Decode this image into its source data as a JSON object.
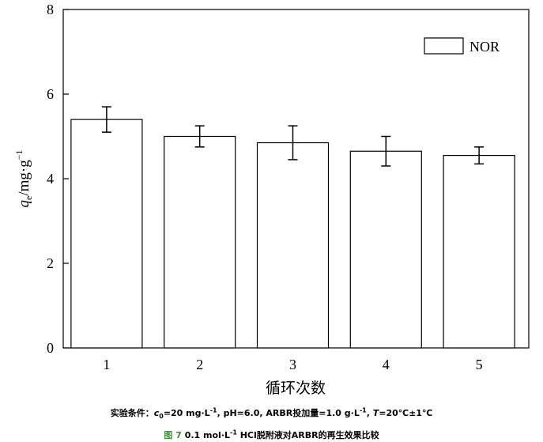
{
  "chart_data": {
    "type": "bar",
    "categories": [
      "1",
      "2",
      "3",
      "4",
      "5"
    ],
    "series": [
      {
        "name": "NOR",
        "values": [
          5.4,
          5.0,
          4.85,
          4.65,
          4.55
        ],
        "errors": [
          0.3,
          0.25,
          0.4,
          0.35,
          0.2
        ]
      }
    ],
    "ylim": [
      0,
      8
    ],
    "yticks": [
      "0",
      "2",
      "4",
      "6",
      "8"
    ],
    "xlabel": "循环次数",
    "ylabel": "qe/mg·g⁻¹",
    "legend_position": "top-right",
    "colors": {
      "bar_fill": "#ffffff",
      "bar_stroke": "#000000"
    }
  },
  "caption": {
    "conditions_prefix": "实验条件：",
    "conditions_c": "c",
    "conditions_c_sub": "0",
    "conditions_c_val": "=20 mg·L",
    "conditions_sup1": "-1",
    "conditions_mid": ", pH=6.0, ARBR投加量=1.0 g·L",
    "conditions_sup2": "-1",
    "conditions_comma": ", ",
    "conditions_t": "T",
    "conditions_end": "=20℃±1℃",
    "figure_label": "图 7",
    "figure_title_a": " 0.1 mol·L",
    "figure_title_sup": "-1",
    "figure_title_b": " HCl脱附液对ARBR的再生效果比较"
  },
  "colors": {
    "caption_label": "#3e8f3e"
  }
}
